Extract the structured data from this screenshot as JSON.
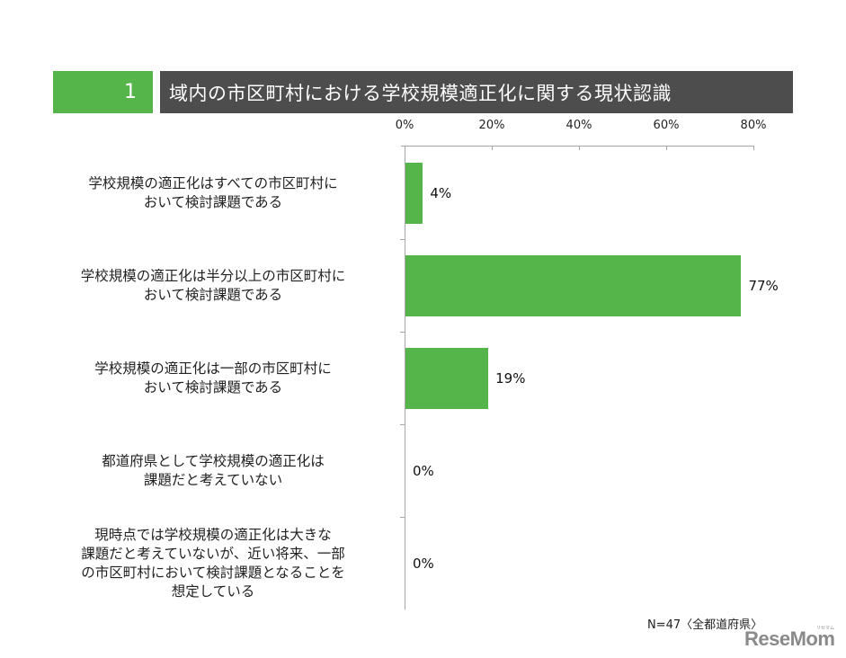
{
  "header": {
    "number": "1",
    "title": "域内の市区町村における学校規模適正化に関する現状認識"
  },
  "axis": {
    "ticks": [
      "0%",
      "20%",
      "40%",
      "60%",
      "80%"
    ]
  },
  "categories": [
    {
      "lines": [
        "学校規模の適正化はすべての市区町村に",
        "おいて検討課題である"
      ],
      "value_label": "4%"
    },
    {
      "lines": [
        "学校規模の適正化は半分以上の市区町村に",
        "おいて検討課題である"
      ],
      "value_label": "77%"
    },
    {
      "lines": [
        "学校規模の適正化は一部の市区町村に",
        "おいて検討課題である"
      ],
      "value_label": "19%"
    },
    {
      "lines": [
        "都道府県として学校規模の適正化は",
        "課題だと考えていない"
      ],
      "value_label": "0%"
    },
    {
      "lines": [
        "現時点では学校規模の適正化は大きな",
        "課題だと考えていないが、近い将来、一部",
        "の市区町村において検討課題となることを",
        "想定している"
      ],
      "value_label": "0%"
    }
  ],
  "footer": {
    "note": "N=47〈全都道府県〉",
    "logo": "ReseMom",
    "logo_sub": "リセマム"
  },
  "colors": {
    "bar": "#55b44a",
    "header_number_bg": "#55b44a",
    "header_title_bg": "#4d4d4d",
    "axis": "#a6a6a6"
  },
  "chart_data": {
    "type": "bar",
    "orientation": "horizontal",
    "title": "域内の市区町村における学校規模適正化に関する現状認識",
    "categories": [
      "学校規模の適正化はすべての市区町村において検討課題である",
      "学校規模の適正化は半分以上の市区町村において検討課題である",
      "学校規模の適正化は一部の市区町村において検討課題である",
      "都道府県として学校規模の適正化は課題だと考えていない",
      "現時点では学校規模の適正化は大きな課題だと考えていないが、近い将来、一部の市区町村において検討課題となることを想定している"
    ],
    "values": [
      4,
      77,
      19,
      0,
      0
    ],
    "value_labels": [
      "4%",
      "77%",
      "19%",
      "0%",
      "0%"
    ],
    "xlabel": "",
    "ylabel": "",
    "xlim": [
      0,
      80
    ],
    "xticks": [
      "0%",
      "20%",
      "40%",
      "60%",
      "80%"
    ],
    "axis_position": "top",
    "grid": false,
    "legend": null,
    "note": "N=47〈全都道府県〉"
  }
}
